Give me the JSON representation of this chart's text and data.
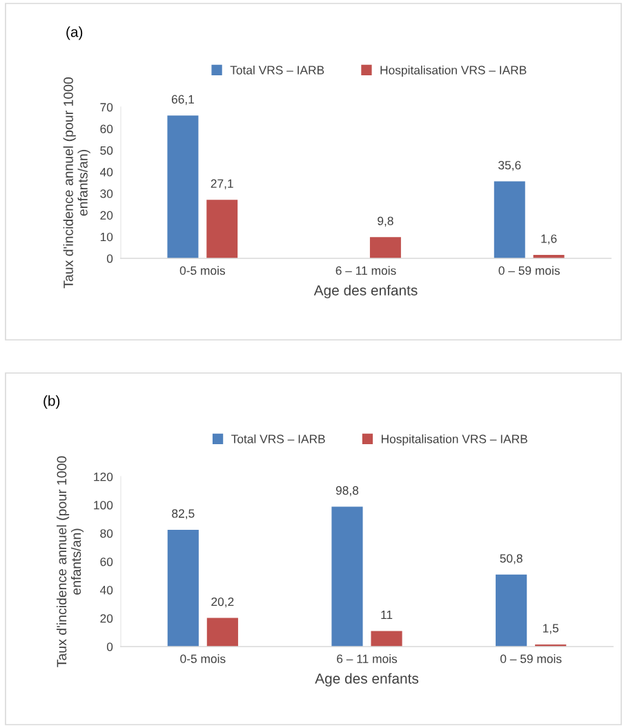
{
  "chart_data": [
    {
      "type": "bar",
      "title": "(a)",
      "xlabel": "Age des enfants",
      "ylabel": "Taux d'incidence annuel (pour 1000 enfants/an)",
      "categories": [
        "0-5 mois",
        "6 – 11 mois",
        "0 – 59 mois"
      ],
      "ylim": [
        0,
        70
      ],
      "yticks": [
        0,
        10,
        20,
        30,
        40,
        50,
        60,
        70
      ],
      "grid": false,
      "legend": "top",
      "series": [
        {
          "name": "Total VRS – IARB",
          "color": "#4f81bd",
          "values": [
            66.1,
            null,
            35.6
          ],
          "value_labels": [
            "66,1",
            null,
            "35,6"
          ]
        },
        {
          "name": "Hospitalisation VRS – IARB",
          "color": "#c0504d",
          "values": [
            27.1,
            9.8,
            1.6
          ],
          "value_labels": [
            "27,1",
            "9,8",
            "1,6"
          ]
        }
      ]
    },
    {
      "type": "bar",
      "title": "(b)",
      "xlabel": "Age des enfants",
      "ylabel": "Taux d'incidence annuel (pour 1000 enfants/an)",
      "categories": [
        "0-5 mois",
        "6 – 11 mois",
        "0 – 59 mois"
      ],
      "ylim": [
        0,
        120
      ],
      "yticks": [
        0,
        20,
        40,
        60,
        80,
        100,
        120
      ],
      "grid": false,
      "legend": "top",
      "series": [
        {
          "name": "Total VRS – IARB",
          "color": "#4f81bd",
          "values": [
            82.5,
            98.8,
            50.8
          ],
          "value_labels": [
            "82,5",
            "98,8",
            "50,8"
          ]
        },
        {
          "name": "Hospitalisation VRS – IARB",
          "color": "#c0504d",
          "values": [
            20.2,
            11,
            1.5
          ],
          "value_labels": [
            "20,2",
            "11",
            "1,5"
          ]
        }
      ]
    }
  ]
}
